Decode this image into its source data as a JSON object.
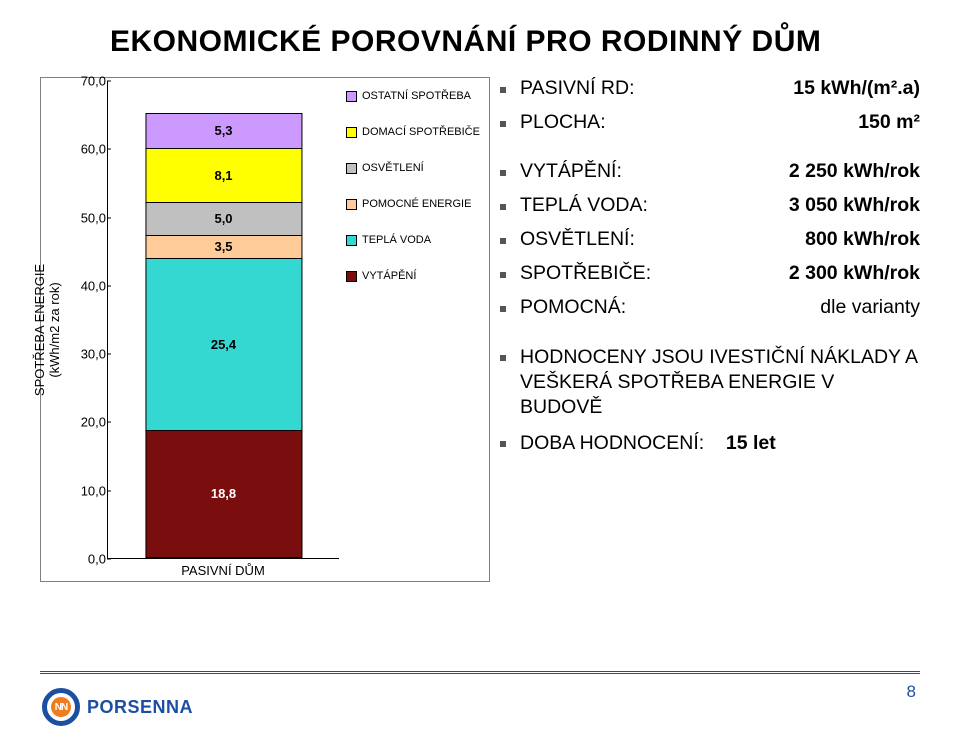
{
  "title": "EKONOMICKÉ POROVNÁNÍ PRO RODINNÝ DŮM",
  "chart": {
    "type": "stacked_bar",
    "y_label": "SPOTŘEBA ENERGIE\n(kWh/m2 za rok)",
    "x_category": "PASIVNÍ DŮM",
    "ylim": [
      0,
      70
    ],
    "ytick_step": 10,
    "yticks": [
      "0,0",
      "10,0",
      "20,0",
      "30,0",
      "40,0",
      "50,0",
      "60,0",
      "70,0"
    ],
    "background": "#ffffff",
    "segments": [
      {
        "name": "VYTÁPĚNÍ",
        "value": 18.8,
        "label": "18,8",
        "color": "#7a0e0e",
        "text": "#ffffff"
      },
      {
        "name": "TEPLÁ VODA",
        "value": 25.4,
        "label": "25,4",
        "color": "#35d8d0",
        "text": "#000000"
      },
      {
        "name": "POMOCNÉ ENERGIE",
        "value": 3.5,
        "label": "3,5",
        "color": "#ffcc99",
        "text": "#000000"
      },
      {
        "name": "OSVĚTLENÍ",
        "value": 5.0,
        "label": "5,0",
        "color": "#c0c0c0",
        "text": "#000000"
      },
      {
        "name": "DOMACÍ SPOTŘEBIČE",
        "value": 8.1,
        "label": "8,1",
        "color": "#ffff00",
        "text": "#000000"
      },
      {
        "name": "OSTATNÍ SPOTŘEBA",
        "value": 5.3,
        "label": "5,3",
        "color": "#cc99ff",
        "text": "#000000"
      }
    ],
    "legend_order": [
      "OSTATNÍ SPOTŘEBA",
      "DOMACÍ SPOTŘEBIČE",
      "OSVĚTLENÍ",
      "POMOCNÉ ENERGIE",
      "TEPLÁ VODA",
      "VYTÁPĚNÍ"
    ]
  },
  "bullets": [
    {
      "label": "PASIVNÍ RD:",
      "value_html": "<b>15 kWh/(m².a)</b>",
      "gap_after": false
    },
    {
      "label": "PLOCHA:",
      "value_html": "<b>150 m²</b>",
      "gap_after": true
    },
    {
      "label": "VYTÁPĚNÍ:",
      "value_html": "<b>2 250 kWh/rok</b>",
      "gap_after": false
    },
    {
      "label": "TEPLÁ VODA:",
      "value_html": "<b>3 050 kWh/rok</b>",
      "gap_after": false
    },
    {
      "label": "OSVĚTLENÍ:",
      "value_html": "<b>800 kWh/rok</b>",
      "gap_after": false
    },
    {
      "label": "SPOTŘEBIČE:",
      "value_html": "<b>2 300 kWh/rok</b>",
      "gap_after": false
    },
    {
      "label": "POMOCNÁ:",
      "value_html": "dle varianty",
      "gap_after": true
    },
    {
      "text": "HODNOCENY JSOU IVESTIČNÍ NÁKLADY A VEŠKERÁ SPOTŘEBA ENERGIE V BUDOVĚ"
    },
    {
      "text_html": "DOBA HODNOCENÍ:&nbsp;&nbsp;&nbsp;&nbsp;<b>15 let</b>"
    }
  ],
  "logo_text": "PORSENNA",
  "page_number": "8"
}
